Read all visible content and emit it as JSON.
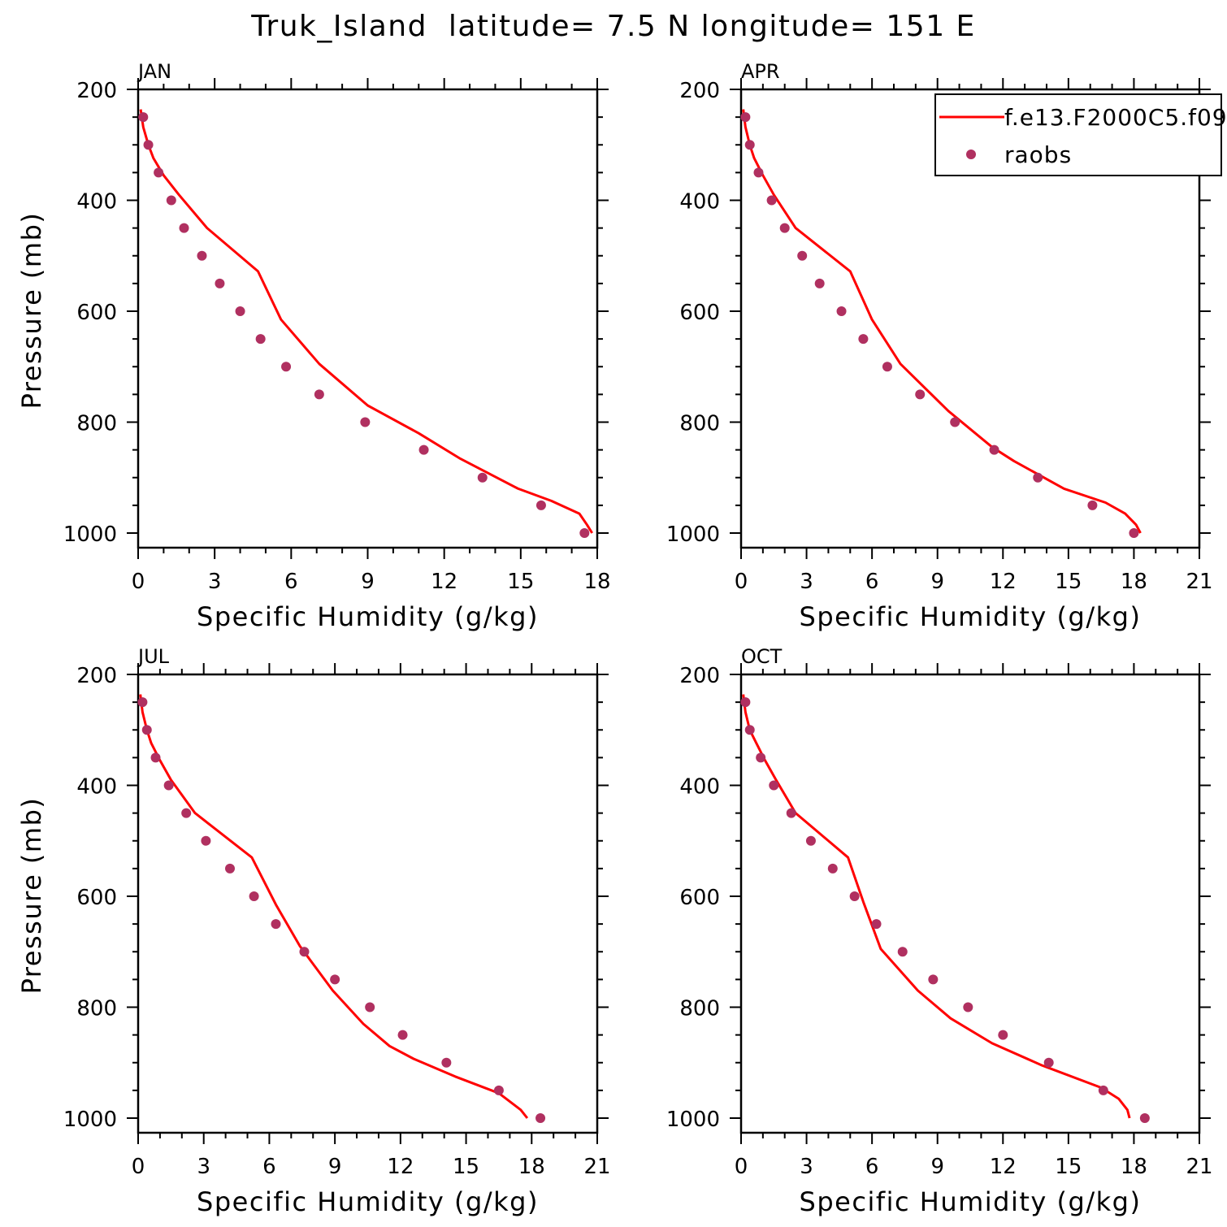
{
  "title": "Truk_Island  latitude= 7.5 N longitude= 151 E",
  "colors": {
    "model_line": "#ff0000",
    "obs_marker": "#b03060",
    "frame": "#000000"
  },
  "legend": {
    "placement": "top-right of APR panel",
    "entries": [
      "f.e13.F2000C5.f09",
      "raobs"
    ]
  },
  "chart_data": [
    {
      "type": "line",
      "panel_label": "JAN",
      "xlabel": "Specific Humidity (g/kg)",
      "ylabel": "Pressure (mb)",
      "xlim": [
        0,
        18
      ],
      "ylim": [
        1000,
        200
      ],
      "y_reversed": true,
      "xticks": [
        "0",
        "3",
        "6",
        "9",
        "12",
        "15",
        "18"
      ],
      "yticks": [
        "200",
        "400",
        "600",
        "800",
        "1000"
      ],
      "series": [
        {
          "name": "f.e13.F2000C5.f09",
          "kind": "line",
          "x": [
            0.1,
            0.2,
            0.4,
            0.6,
            1.0,
            1.6,
            2.7,
            4.7,
            5.6,
            7.1,
            9.0,
            11.0,
            12.6,
            14.9,
            16.2,
            17.3,
            17.6,
            17.8
          ],
          "y": [
            236,
            268,
            300,
            324,
            355,
            390,
            450,
            528,
            615,
            695,
            770,
            820,
            865,
            920,
            942,
            965,
            985,
            1000
          ]
        },
        {
          "name": "raobs",
          "kind": "scatter",
          "x": [
            0.2,
            0.4,
            0.8,
            1.3,
            1.8,
            2.5,
            3.2,
            4.0,
            4.8,
            5.8,
            7.1,
            8.9,
            11.2,
            13.5,
            15.8,
            17.5
          ],
          "y": [
            250,
            300,
            350,
            400,
            450,
            500,
            550,
            600,
            650,
            700,
            750,
            800,
            850,
            900,
            950,
            1000
          ]
        }
      ]
    },
    {
      "type": "line",
      "panel_label": "APR",
      "xlabel": "Specific Humidity (g/kg)",
      "ylabel": "",
      "xlim": [
        0,
        21
      ],
      "ylim": [
        1000,
        200
      ],
      "y_reversed": true,
      "xticks": [
        "0",
        "3",
        "6",
        "9",
        "12",
        "15",
        "18",
        "21"
      ],
      "yticks": [
        "200",
        "400",
        "600",
        "800",
        "1000"
      ],
      "series": [
        {
          "name": "f.e13.F2000C5.f09",
          "kind": "line",
          "x": [
            0.1,
            0.2,
            0.4,
            0.6,
            1.0,
            1.5,
            2.5,
            5.0,
            6.0,
            7.3,
            9.5,
            11.5,
            12.5,
            14.8,
            16.7,
            17.6,
            18.1,
            18.3
          ],
          "y": [
            236,
            268,
            300,
            324,
            355,
            390,
            450,
            528,
            615,
            695,
            780,
            845,
            870,
            920,
            945,
            965,
            985,
            1000
          ]
        },
        {
          "name": "raobs",
          "kind": "scatter",
          "x": [
            0.2,
            0.4,
            0.8,
            1.4,
            2.0,
            2.8,
            3.6,
            4.6,
            5.6,
            6.7,
            8.2,
            9.8,
            11.6,
            13.6,
            16.1,
            18.0
          ],
          "y": [
            250,
            300,
            350,
            400,
            450,
            500,
            550,
            600,
            650,
            700,
            750,
            800,
            850,
            900,
            950,
            1000
          ]
        }
      ]
    },
    {
      "type": "line",
      "panel_label": "JUL",
      "xlabel": "Specific Humidity (g/kg)",
      "ylabel": "Pressure (mb)",
      "xlim": [
        0,
        21
      ],
      "ylim": [
        1000,
        200
      ],
      "y_reversed": true,
      "xticks": [
        "0",
        "3",
        "6",
        "9",
        "12",
        "15",
        "18",
        "21"
      ],
      "yticks": [
        "200",
        "400",
        "600",
        "800",
        "1000"
      ],
      "series": [
        {
          "name": "f.e13.F2000C5.f09",
          "kind": "line",
          "x": [
            0.1,
            0.2,
            0.4,
            0.6,
            1.0,
            1.5,
            2.6,
            5.2,
            6.3,
            7.4,
            8.9,
            10.3,
            11.5,
            12.6,
            14.5,
            16.5,
            17.5,
            17.8
          ],
          "y": [
            236,
            268,
            300,
            324,
            355,
            390,
            450,
            530,
            615,
            690,
            770,
            830,
            870,
            893,
            925,
            955,
            985,
            1000
          ]
        },
        {
          "name": "raobs",
          "kind": "scatter",
          "x": [
            0.2,
            0.4,
            0.8,
            1.4,
            2.2,
            3.1,
            4.2,
            5.3,
            6.3,
            7.6,
            9.0,
            10.6,
            12.1,
            14.1,
            16.5,
            18.4
          ],
          "y": [
            250,
            300,
            350,
            400,
            450,
            500,
            550,
            600,
            650,
            700,
            750,
            800,
            850,
            900,
            950,
            1000
          ]
        }
      ]
    },
    {
      "type": "line",
      "panel_label": "OCT",
      "xlabel": "Specific Humidity (g/kg)",
      "ylabel": "",
      "xlim": [
        0,
        21
      ],
      "ylim": [
        1000,
        200
      ],
      "y_reversed": true,
      "xticks": [
        "0",
        "3",
        "6",
        "9",
        "12",
        "15",
        "18",
        "21"
      ],
      "yticks": [
        "200",
        "400",
        "600",
        "800",
        "1000"
      ],
      "series": [
        {
          "name": "f.e13.F2000C5.f09",
          "kind": "line",
          "x": [
            0.1,
            0.2,
            0.4,
            0.7,
            1.1,
            1.6,
            2.5,
            4.9,
            5.6,
            6.4,
            8.1,
            9.6,
            11.5,
            13.8,
            16.5,
            17.3,
            17.7,
            17.8
          ],
          "y": [
            236,
            268,
            300,
            324,
            355,
            390,
            450,
            530,
            610,
            695,
            770,
            820,
            865,
            905,
            945,
            965,
            985,
            1000
          ]
        },
        {
          "name": "raobs",
          "kind": "scatter",
          "x": [
            0.2,
            0.4,
            0.9,
            1.5,
            2.3,
            3.2,
            4.2,
            5.2,
            6.2,
            7.4,
            8.8,
            10.4,
            12.0,
            14.1,
            16.6,
            18.5
          ],
          "y": [
            250,
            300,
            350,
            400,
            450,
            500,
            550,
            600,
            650,
            700,
            750,
            800,
            850,
            900,
            950,
            1000
          ]
        }
      ]
    }
  ]
}
